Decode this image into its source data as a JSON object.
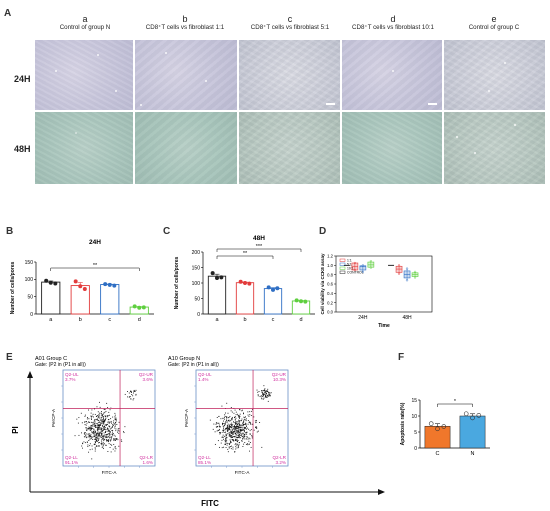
{
  "panel_labels": {
    "A": "A",
    "B": "B",
    "C": "C",
    "D": "D",
    "E": "E",
    "F": "F"
  },
  "panel_a": {
    "columns": [
      {
        "letter": "a",
        "label": "Control of group N"
      },
      {
        "letter": "b",
        "label": "CD8⁺T cells vs fibroblast 1:1"
      },
      {
        "letter": "c",
        "label": "CD8⁺T cells vs fibroblast 5:1"
      },
      {
        "letter": "d",
        "label": "CD8⁺T cells vs fibroblast 10:1"
      },
      {
        "letter": "e",
        "label": "Control of group C"
      }
    ],
    "rows": [
      "24H",
      "48H"
    ]
  },
  "chart_data": [
    {
      "id": "B",
      "type": "bar",
      "title": "24H",
      "ylabel": "Number of cells/pores",
      "categories": [
        "a",
        "b",
        "c",
        "d"
      ],
      "values": [
        92,
        82,
        85,
        20
      ],
      "colors": [
        "#222222",
        "#e23b3b",
        "#2f6fc4",
        "#5fcf3f"
      ],
      "points": [
        [
          96,
          90,
          88
        ],
        [
          94,
          80,
          72
        ],
        [
          86,
          84,
          82
        ],
        [
          22,
          18,
          19
        ]
      ],
      "ylim": [
        0,
        150
      ],
      "yticks": [
        0,
        50,
        100,
        150
      ],
      "significance": [
        {
          "from": "a",
          "to": "d",
          "label": "**"
        }
      ]
    },
    {
      "id": "C",
      "type": "bar",
      "title": "48H",
      "ylabel": "Number of cells/pores",
      "categories": [
        "a",
        "b",
        "c",
        "d"
      ],
      "values": [
        122,
        101,
        82,
        42
      ],
      "colors": [
        "#222222",
        "#e23b3b",
        "#2f6fc4",
        "#5fcf3f"
      ],
      "points": [
        [
          132,
          116,
          118
        ],
        [
          104,
          100,
          98
        ],
        [
          86,
          78,
          83
        ],
        [
          44,
          41,
          40
        ]
      ],
      "ylim": [
        0,
        200
      ],
      "yticks": [
        0,
        50,
        100,
        150,
        200
      ],
      "significance": [
        {
          "from": "a",
          "to": "c",
          "label": "**"
        },
        {
          "from": "a",
          "to": "d",
          "label": "***"
        }
      ]
    },
    {
      "id": "D",
      "type": "box",
      "ylabel": "Cell viability via CCK8 assay",
      "xlabel": "Time",
      "groups": [
        "24H",
        "48H"
      ],
      "legend": [
        "1:1",
        "5:1",
        "10:1",
        "CONTROL"
      ],
      "colors": [
        "#e23b3b",
        "#2f6fc4",
        "#5fcf3f",
        "#222222"
      ],
      "ylim": [
        0.0,
        1.2
      ],
      "yticks": [
        0.0,
        0.2,
        0.4,
        0.6,
        0.8,
        1.0,
        1.2
      ],
      "boxes": [
        {
          "group": "24H",
          "series": "1:1",
          "min": 0.9,
          "q1": 0.9,
          "median": 0.97,
          "q3": 1.05,
          "max": 1.05
        },
        {
          "group": "24H",
          "series": "5:1",
          "min": 0.86,
          "q1": 0.9,
          "median": 0.97,
          "q3": 0.99,
          "max": 1.0
        },
        {
          "group": "24H",
          "series": "10:1",
          "min": 0.95,
          "q1": 0.96,
          "median": 1.01,
          "q3": 1.07,
          "max": 1.09
        },
        {
          "group": "24H",
          "series": "CONTROL",
          "min": 1.0,
          "q1": 1.0,
          "median": 1.0,
          "q3": 1.0,
          "max": 1.0
        },
        {
          "group": "48H",
          "series": "1:1",
          "min": 0.82,
          "q1": 0.85,
          "median": 0.92,
          "q3": 0.98,
          "max": 1.0
        },
        {
          "group": "48H",
          "series": "5:1",
          "min": 0.68,
          "q1": 0.73,
          "median": 0.8,
          "q3": 0.88,
          "max": 0.93
        },
        {
          "group": "48H",
          "series": "10:1",
          "min": 0.74,
          "q1": 0.76,
          "median": 0.8,
          "q3": 0.84,
          "max": 0.86
        },
        {
          "group": "48H",
          "series": "CONTROL",
          "min": 1.0,
          "q1": 1.0,
          "median": 1.0,
          "q3": 1.0,
          "max": 1.0
        }
      ]
    },
    {
      "id": "F",
      "type": "bar",
      "ylabel": "Apoptosis rate(%)",
      "categories": [
        "C",
        "N"
      ],
      "values": [
        6.8,
        10.0
      ],
      "errors": [
        0.8,
        0.7
      ],
      "colors": [
        "#f0772b",
        "#4aa8e0"
      ],
      "points": [
        [
          7.6,
          6.0,
          6.7
        ],
        [
          10.7,
          9.4,
          10.2
        ]
      ],
      "ylim": [
        0,
        15
      ],
      "yticks": [
        0,
        5,
        10,
        15
      ],
      "significance": [
        {
          "from": "C",
          "to": "N",
          "label": "*"
        }
      ]
    }
  ],
  "panel_e": {
    "x_axis_title": "FITC",
    "y_axis_title": "PI",
    "plots": [
      {
        "title": "A01 Group C",
        "gate": "Gate: (P2 in (P1 in all))",
        "xlabel": "FITC-A",
        "ylabel": "PerCP-A",
        "quadrants": {
          "UL": {
            "name": "Q2-UL",
            "pct": "3.7%"
          },
          "UR": {
            "name": "Q2-UR",
            "pct": "3.6%"
          },
          "LL": {
            "name": "Q2-LL",
            "pct": "91.1%"
          },
          "LR": {
            "name": "Q2-LR",
            "pct": "1.6%"
          }
        }
      },
      {
        "title": "A10 Group N",
        "gate": "Gate: (P2 in (P1 in all))",
        "xlabel": "FITC-A",
        "ylabel": "PerCP-A",
        "quadrants": {
          "UL": {
            "name": "Q2-UL",
            "pct": "1.4%"
          },
          "UR": {
            "name": "Q2-UR",
            "pct": "10.3%"
          },
          "LL": {
            "name": "Q2-LL",
            "pct": "85.1%"
          },
          "LR": {
            "name": "Q2-LR",
            "pct": "3.2%"
          }
        }
      }
    ]
  }
}
